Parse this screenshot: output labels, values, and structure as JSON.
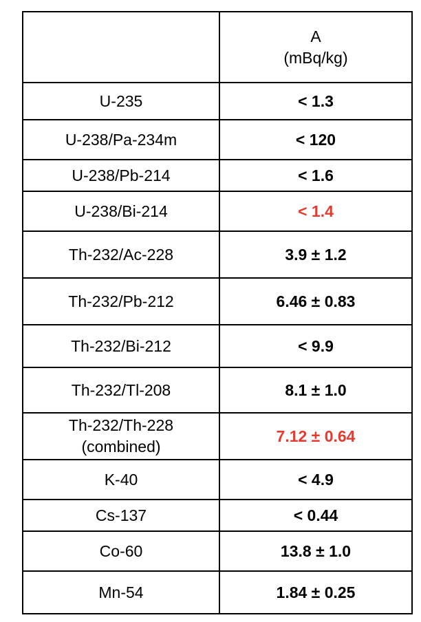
{
  "header": {
    "isotope_label": "",
    "activity_label": "A",
    "unit_label": "(mBq/kg)"
  },
  "accent_colors": {
    "highlight": "#e53a2f"
  },
  "rows": [
    {
      "isotope": "U-235",
      "isotope_note": "",
      "value": "< 1.3",
      "highlight": false
    },
    {
      "isotope": "U-238/Pa-234m",
      "isotope_note": "",
      "value": "< 120",
      "highlight": false
    },
    {
      "isotope": "U-238/Pb-214",
      "isotope_note": "",
      "value": "< 1.6",
      "highlight": false
    },
    {
      "isotope": "U-238/Bi-214",
      "isotope_note": "",
      "value": "< 1.4",
      "highlight": true
    },
    {
      "isotope": "Th-232/Ac-228",
      "isotope_note": "",
      "value": "3.9 ± 1.2",
      "highlight": false
    },
    {
      "isotope": "Th-232/Pb-212",
      "isotope_note": "",
      "value": "6.46 ± 0.83",
      "highlight": false
    },
    {
      "isotope": "Th-232/Bi-212",
      "isotope_note": "",
      "value": "< 9.9",
      "highlight": false
    },
    {
      "isotope": "Th-232/Tl-208",
      "isotope_note": "",
      "value": "8.1 ± 1.0",
      "highlight": false
    },
    {
      "isotope": "Th-232/Th-228",
      "isotope_note": "(combined)",
      "value": "7.12 ± 0.64",
      "highlight": true
    },
    {
      "isotope": "K-40",
      "isotope_note": "",
      "value": "< 4.9",
      "highlight": false
    },
    {
      "isotope": "Cs-137",
      "isotope_note": "",
      "value": "< 0.44",
      "highlight": false
    },
    {
      "isotope": "Co-60",
      "isotope_note": "",
      "value": "13.8 ± 1.0",
      "highlight": false
    },
    {
      "isotope": "Mn-54",
      "isotope_note": "",
      "value": "1.84 ± 0.25",
      "highlight": false
    }
  ]
}
